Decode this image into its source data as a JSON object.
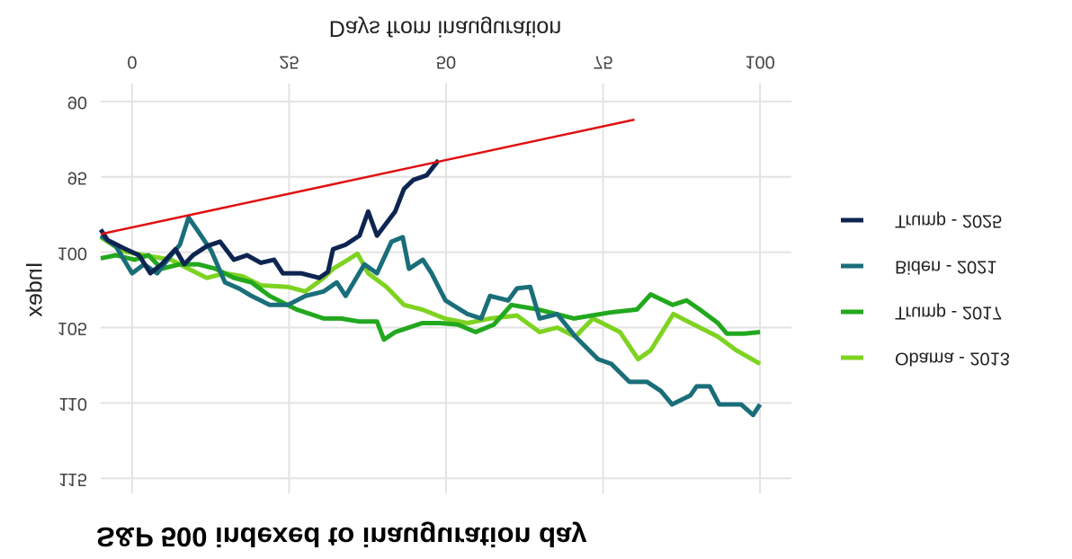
{
  "chart_data": {
    "type": "line",
    "title": "S&P 500 indexed to inauguration day",
    "x_label": "Days from inauguration",
    "y_label": "Index",
    "xlim": [
      -5,
      105
    ],
    "xticks": [
      0,
      25,
      50,
      75,
      100
    ],
    "ylim": [
      88.8,
      116
    ],
    "yticks": [
      90,
      95,
      100,
      105,
      110,
      115
    ],
    "grid": true,
    "series": [
      {
        "name": "Trump - 2025",
        "color": "#0d2550",
        "x": [
          -5,
          -3.9,
          -1,
          1.1,
          2.9,
          4.7,
          6.9,
          8.3,
          9.7,
          11.9,
          14,
          16.2,
          18.3,
          20.5,
          22.6,
          24,
          26.9,
          29.8,
          31.2,
          32,
          34,
          36.2,
          37.6,
          39,
          41.9,
          43.3,
          44.8,
          46.9,
          48.8
        ],
        "values": [
          98.5,
          99.2,
          99.8,
          100.2,
          101.4,
          100.8,
          99.8,
          100.8,
          100.2,
          99.6,
          99.3,
          100.5,
          100.2,
          100.7,
          100.5,
          101.4,
          101.4,
          101.7,
          101.3,
          99.8,
          99.5,
          98.9,
          97.3,
          98.9,
          97.3,
          95.8,
          95.2,
          94.9,
          93.9
        ]
      },
      {
        "name": "Biden - 2021",
        "color": "#1a6e7a",
        "x": [
          -5,
          -2.6,
          0,
          1.9,
          4,
          6.2,
          7.6,
          9,
          10.5,
          12.6,
          14.8,
          17,
          19,
          21.9,
          24.8,
          27.6,
          30.5,
          32.6,
          34,
          37,
          39,
          41.3,
          43.1,
          44.1,
          46.3,
          47.7,
          49.9,
          53.4,
          55.6,
          57,
          59.9,
          61.3,
          63.4,
          64.9,
          67.7,
          70.6,
          74.2,
          76.3,
          79.2,
          82,
          84.2,
          86,
          88.9,
          89.9,
          92,
          93.5,
          97,
          98.9,
          100
        ],
        "values": [
          98.9,
          99.6,
          101.4,
          100.8,
          101.4,
          100.2,
          99.5,
          97.7,
          98.6,
          99.9,
          102,
          102.4,
          102.9,
          103.5,
          103.5,
          102.9,
          102.6,
          102,
          102.9,
          100.8,
          101.4,
          99.3,
          99,
          101.1,
          100.5,
          101.4,
          103.2,
          104.1,
          104.4,
          102.9,
          103.2,
          102.4,
          102.3,
          104.4,
          104.1,
          105.6,
          107.1,
          107.4,
          108.6,
          108.6,
          109.2,
          110.1,
          109.5,
          108.9,
          108.9,
          110.1,
          110.1,
          110.8,
          110.1
        ]
      },
      {
        "name": "Trump - 2017",
        "color": "#22a81e",
        "x": [
          -5,
          -2.6,
          0.4,
          2.6,
          4.7,
          7.6,
          10.5,
          13.3,
          16.2,
          19,
          21.9,
          26.2,
          30.5,
          33.3,
          36.2,
          39,
          40.1,
          41.9,
          46.2,
          49,
          51.9,
          54.7,
          57.6,
          60.4,
          64.7,
          70.4,
          76.1,
          80.4,
          82.6,
          86.1,
          88.3,
          90.4,
          93.3,
          94.7,
          97.5,
          100
        ],
        "values": [
          100.4,
          100.2,
          100.5,
          100.2,
          101.1,
          100.8,
          100.8,
          101.1,
          101.7,
          102,
          102.9,
          103.8,
          104.4,
          104.4,
          104.6,
          104.6,
          105.8,
          105.3,
          104.7,
          104.7,
          104.8,
          105.3,
          104.8,
          103.5,
          103.8,
          104.4,
          104,
          103.8,
          102.8,
          103.5,
          103.2,
          103.8,
          104.7,
          105.4,
          105.4,
          105.3
        ]
      },
      {
        "name": "Obama - 2013",
        "color": "#7ed321",
        "x": [
          -5,
          -1.7,
          1.9,
          6.2,
          9,
          11.9,
          14.8,
          17.6,
          20.5,
          24.8,
          27.6,
          30.5,
          32,
          34,
          35.9,
          37.6,
          40.5,
          43.3,
          46.2,
          49.8,
          53.4,
          57,
          61.3,
          64.9,
          67.7,
          70.6,
          73.4,
          77.7,
          80.6,
          82.6,
          86.2,
          89,
          93.3,
          96.2,
          100
        ],
        "values": [
          99,
          99.9,
          100.2,
          100.5,
          101.1,
          101.7,
          101.4,
          101.6,
          102.2,
          102.3,
          102.6,
          101.7,
          101.1,
          100.6,
          100.1,
          101.4,
          102.3,
          103.5,
          103.8,
          104.4,
          104.7,
          104.4,
          104.2,
          105.3,
          105,
          105.6,
          104.4,
          105.3,
          107.1,
          106.5,
          104.1,
          104.7,
          105.6,
          106.5,
          107.4
        ]
      }
    ],
    "trend_line": {
      "color": "#e01010",
      "x": [
        -5,
        80
      ],
      "values": [
        98.8,
        91.2
      ]
    }
  }
}
